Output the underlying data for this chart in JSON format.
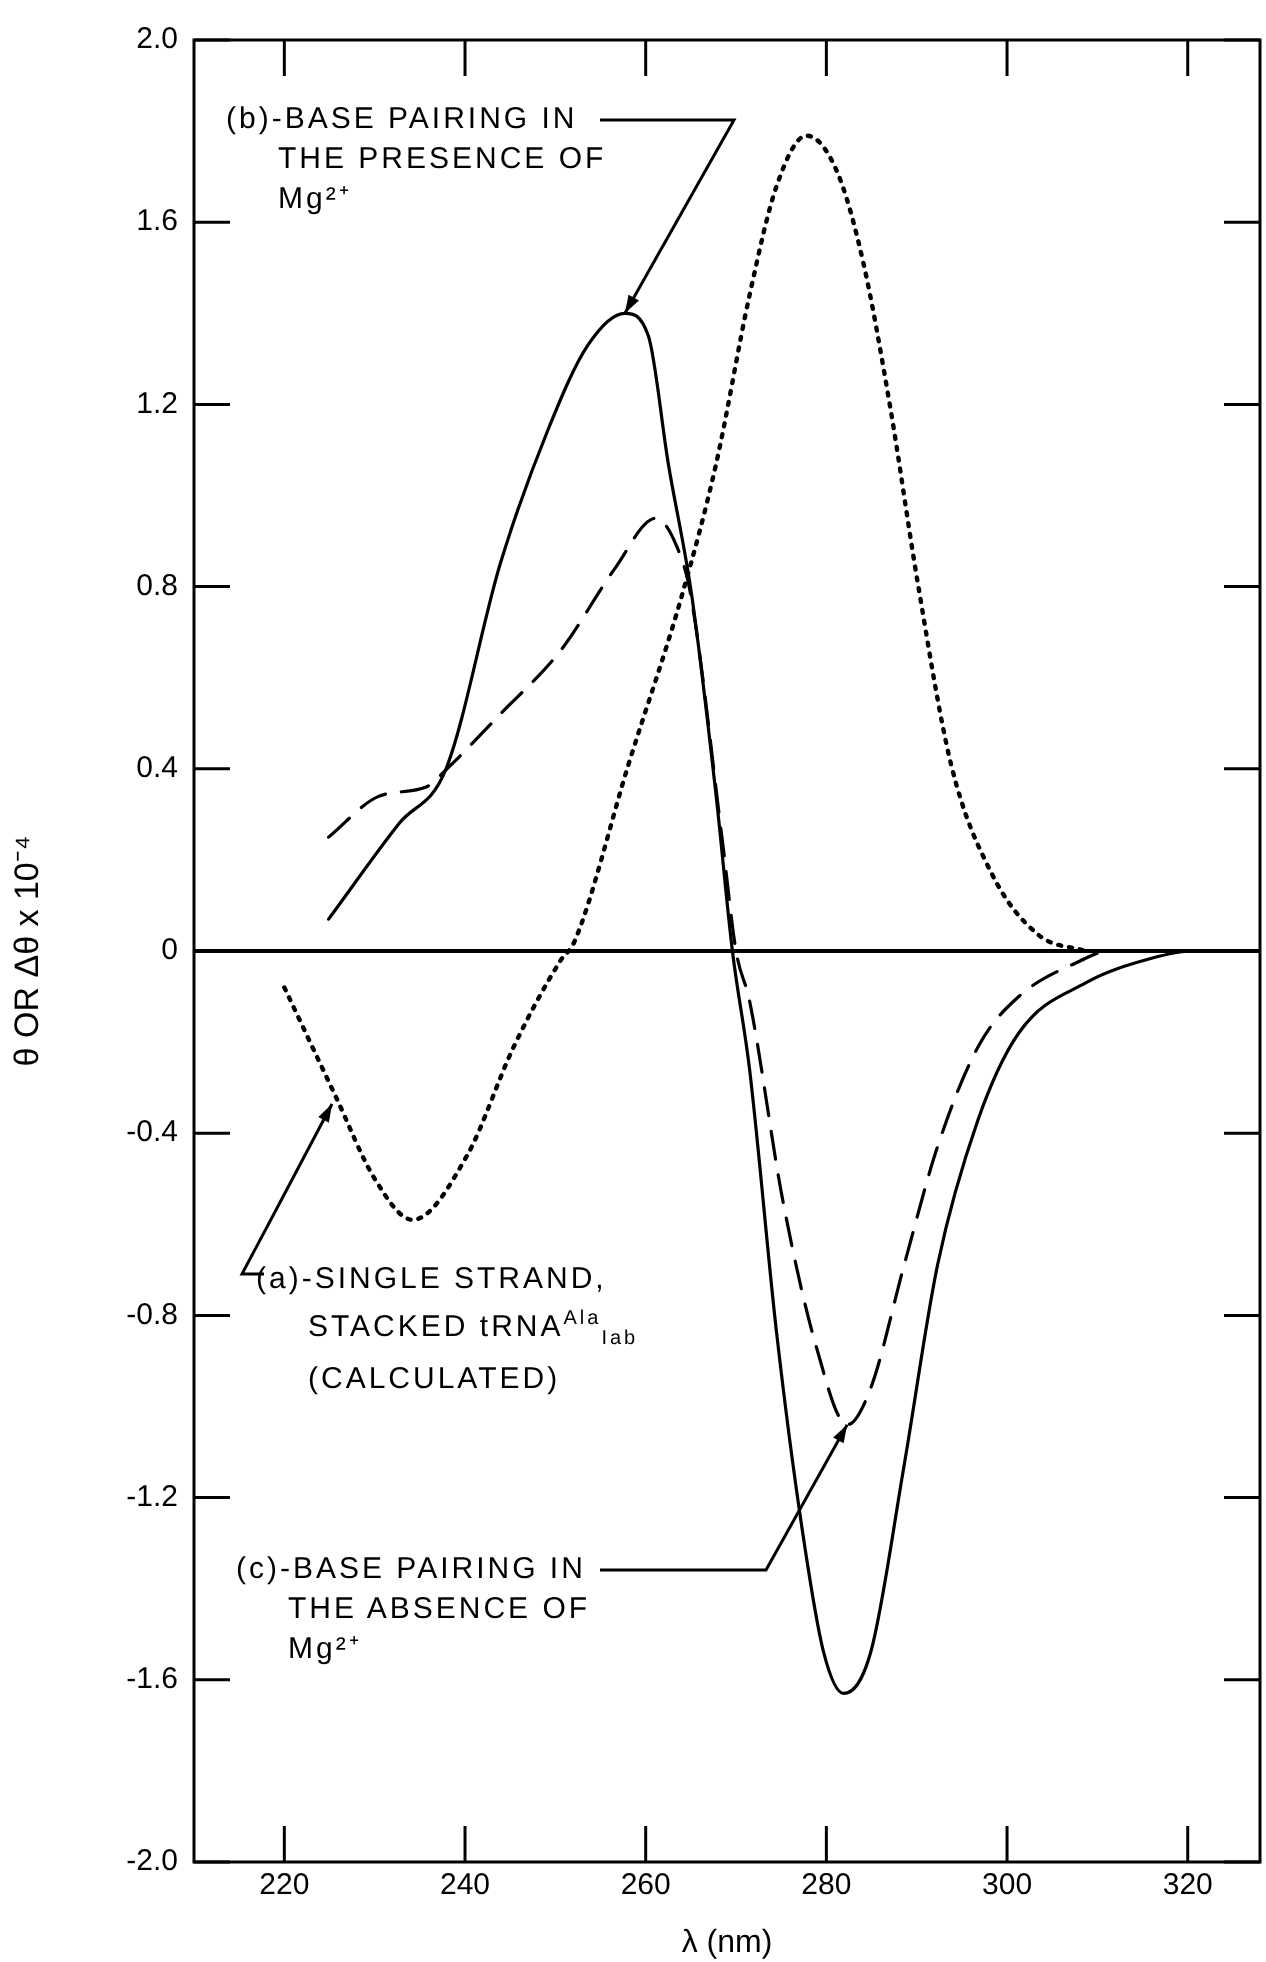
{
  "chart_data": {
    "type": "line",
    "xlabel": "λ (nm)",
    "ylabel": "θ OR Δθ x 10⁻⁴",
    "xlim": [
      210,
      328
    ],
    "xticks": [
      220,
      240,
      260,
      280,
      300,
      320
    ],
    "ylim": [
      -2,
      2
    ],
    "yticks": [
      {
        "value": 2,
        "label": "2.0"
      },
      1.6,
      1.2,
      0.8,
      0.4,
      0,
      -0.4,
      -0.8,
      -1.2,
      -1.6,
      {
        "value": -2,
        "label": "-2.0"
      }
    ],
    "grid": false,
    "legend": false,
    "marker": "none",
    "ref_lines": [
      {
        "axis": "y",
        "value": 0,
        "color": "#000000",
        "line_style": "solid"
      }
    ],
    "series": [
      {
        "color": "#000000",
        "line_style": "dotted",
        "x": [
          220,
          225.7,
          230,
          234.2,
          240.2,
          245.4,
          250.6,
          252.1,
          258.1,
          264,
          267.8,
          271.5,
          274.5,
          277.8,
          281.2,
          284.1,
          287.1,
          290.1,
          293.8,
          298.3,
          303.5,
          308.7
        ],
        "values": [
          -0.08,
          -0.32,
          -0.5,
          -0.59,
          -0.45,
          -0.21,
          -0.02,
          0.02,
          0.41,
          0.78,
          1.07,
          1.44,
          1.68,
          1.79,
          1.71,
          1.51,
          1.19,
          0.81,
          0.41,
          0.17,
          0.035,
          0
        ]
      },
      {
        "color": "#000000",
        "line_style": "solid",
        "x": [
          224.9,
          232.7,
          237.9,
          243.9,
          249.1,
          253.6,
          257.7,
          260.3,
          262.5,
          265.1,
          267.8,
          269.6,
          271.5,
          274.5,
          277.4,
          279.7,
          281.9,
          284.9,
          288.6,
          292.3,
          296.8,
          301.3,
          308.7,
          316,
          320.5,
          325
        ],
        "values": [
          0.07,
          0.28,
          0.4,
          0.85,
          1.14,
          1.33,
          1.4,
          1.35,
          1.07,
          0.78,
          0.34,
          0,
          -0.26,
          -0.84,
          -1.28,
          -1.54,
          -1.63,
          -1.54,
          -1.13,
          -0.69,
          -0.37,
          -0.18,
          -0.07,
          -0.016,
          0,
          0
        ]
      },
      {
        "color": "#000000",
        "line_style": "dashed",
        "x": [
          224.9,
          230.5,
          235.7,
          238,
          243.9,
          250.6,
          256.6,
          261.1,
          263.4,
          265,
          268.5,
          270,
          271.5,
          275.2,
          278.9,
          282.3,
          284.9,
          288.6,
          292.3,
          296.8,
          301.3,
          308.7,
          310.6
        ],
        "values": [
          0.25,
          0.34,
          0.36,
          0.4,
          0.52,
          0.66,
          0.84,
          0.95,
          0.89,
          0.78,
          0.24,
          0,
          -0.11,
          -0.55,
          -0.87,
          -1.04,
          -0.96,
          -0.69,
          -0.43,
          -0.21,
          -0.1,
          -0.016,
          0
        ]
      }
    ],
    "annotations": [
      {
        "text": "(b)-BASE PAIRING IN THE PRESENCE OF Mg²⁺",
        "x": 257.7,
        "y": 1.4
      },
      "(a)-SINGLE STRAND, STACKED tRNA$^{Ala}$$_{Iab}$ (CALCULATED)",
      {
        "text": "(c)-BASE PAIRING IN THE ABSENCE OF Mg²⁺",
        "x": 282.3,
        "y": -1.04
      }
    ]
  }
}
